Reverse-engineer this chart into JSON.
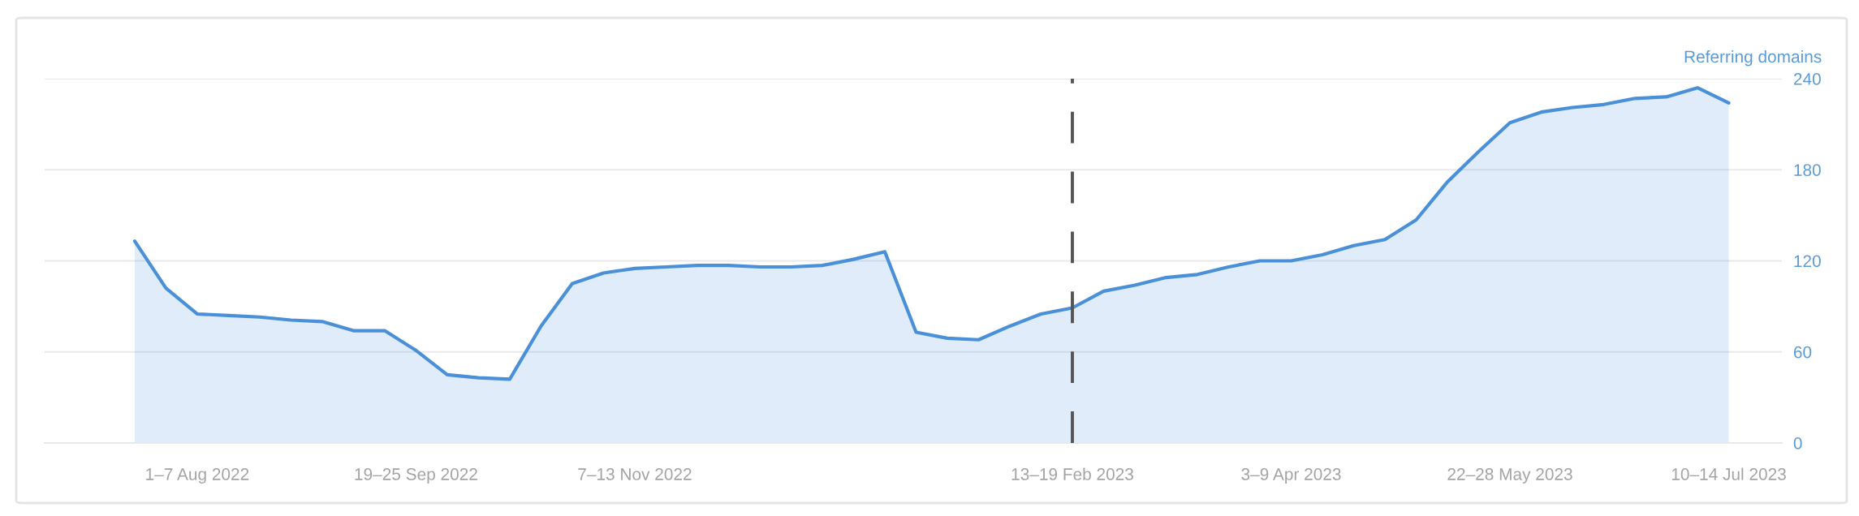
{
  "chart_data": {
    "type": "area",
    "ylabel": "Referring domains",
    "categories": [
      null,
      null,
      "1–7 Aug 2022",
      null,
      null,
      null,
      null,
      null,
      null,
      "19–25 Sep 2022",
      null,
      null,
      null,
      null,
      null,
      null,
      "7–13 Nov 2022",
      null,
      null,
      null,
      null,
      null,
      null,
      null,
      null,
      null,
      null,
      null,
      null,
      null,
      "13–19 Feb 2023",
      null,
      null,
      null,
      null,
      null,
      null,
      "3–9 Apr 2023",
      null,
      null,
      null,
      null,
      null,
      null,
      "22–28 May 2023",
      null,
      null,
      null,
      null,
      null,
      null,
      "10–14 Jul 2023"
    ],
    "series": [
      {
        "color": "#4a90d9",
        "values": [
          133,
          102,
          85,
          84,
          83,
          81,
          80,
          74,
          74,
          61,
          45,
          43,
          42,
          77,
          105,
          112,
          115,
          116,
          117,
          117,
          116,
          116,
          117,
          121,
          126,
          73,
          69,
          68,
          77,
          85,
          89,
          100,
          104,
          109,
          111,
          116,
          120,
          120,
          124,
          130,
          134,
          147,
          172,
          192,
          211,
          218,
          221,
          223,
          227,
          228,
          234,
          224
        ]
      }
    ],
    "ylim": [
      0,
      240
    ],
    "yticks": [
      0,
      60,
      120,
      180,
      240
    ],
    "grid": "y",
    "ref_lines": [
      {
        "axis": "x",
        "value": "13–19 Feb 2023",
        "color": "#555555",
        "line_style": "dashed"
      }
    ]
  }
}
